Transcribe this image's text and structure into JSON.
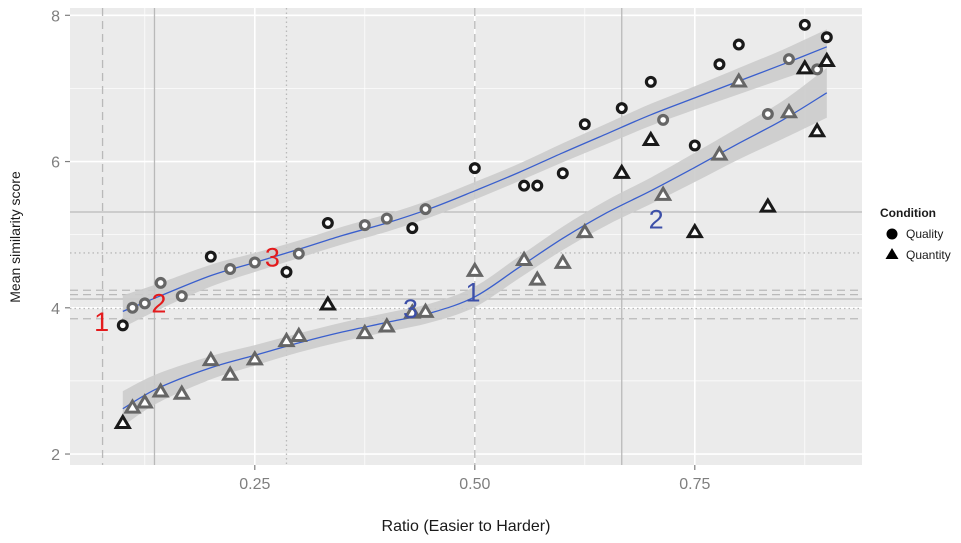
{
  "chart_data": {
    "type": "scatter",
    "xlabel": "Ratio (Easier to Harder)",
    "ylabel": "Mean similarity score",
    "xlim": [
      0.04,
      0.94
    ],
    "ylim": [
      1.85,
      8.1
    ],
    "x_ticks": [
      {
        "value": 0.25,
        "label": "0.25"
      },
      {
        "value": 0.5,
        "label": "0.50"
      },
      {
        "value": 0.75,
        "label": "0.75"
      }
    ],
    "y_ticks": [
      {
        "value": 2,
        "label": "2"
      },
      {
        "value": 4,
        "label": "4"
      },
      {
        "value": 6,
        "label": "6"
      },
      {
        "value": 8,
        "label": "8"
      }
    ],
    "grid": true,
    "legend": {
      "title": "Condition",
      "placement": "right",
      "entries": [
        {
          "label": "Quality",
          "shape": "circle"
        },
        {
          "label": "Quantity",
          "shape": "triangle"
        }
      ]
    },
    "series": [
      {
        "name": "Quality",
        "marker": "circle",
        "points": [
          {
            "x": 0.1,
            "y": 3.76,
            "ring": "dark"
          },
          {
            "x": 0.111,
            "y": 4.0,
            "ring": "grey"
          },
          {
            "x": 0.125,
            "y": 4.06,
            "ring": "grey"
          },
          {
            "x": 0.143,
            "y": 4.34,
            "ring": "grey"
          },
          {
            "x": 0.167,
            "y": 4.16,
            "ring": "grey"
          },
          {
            "x": 0.2,
            "y": 4.7,
            "ring": "dark"
          },
          {
            "x": 0.222,
            "y": 4.53,
            "ring": "grey"
          },
          {
            "x": 0.25,
            "y": 4.62,
            "ring": "grey"
          },
          {
            "x": 0.286,
            "y": 4.49,
            "ring": "dark"
          },
          {
            "x": 0.3,
            "y": 4.74,
            "ring": "grey"
          },
          {
            "x": 0.333,
            "y": 5.16,
            "ring": "dark"
          },
          {
            "x": 0.375,
            "y": 5.13,
            "ring": "grey"
          },
          {
            "x": 0.4,
            "y": 5.22,
            "ring": "grey"
          },
          {
            "x": 0.429,
            "y": 5.09,
            "ring": "dark"
          },
          {
            "x": 0.444,
            "y": 5.35,
            "ring": "grey"
          },
          {
            "x": 0.5,
            "y": 5.91,
            "ring": "dark"
          },
          {
            "x": 0.556,
            "y": 5.67,
            "ring": "dark"
          },
          {
            "x": 0.571,
            "y": 5.67,
            "ring": "dark"
          },
          {
            "x": 0.6,
            "y": 5.84,
            "ring": "dark"
          },
          {
            "x": 0.625,
            "y": 6.51,
            "ring": "dark"
          },
          {
            "x": 0.667,
            "y": 6.73,
            "ring": "dark"
          },
          {
            "x": 0.7,
            "y": 7.09,
            "ring": "dark"
          },
          {
            "x": 0.714,
            "y": 6.57,
            "ring": "grey"
          },
          {
            "x": 0.75,
            "y": 6.22,
            "ring": "dark"
          },
          {
            "x": 0.778,
            "y": 7.33,
            "ring": "dark"
          },
          {
            "x": 0.8,
            "y": 7.6,
            "ring": "dark"
          },
          {
            "x": 0.833,
            "y": 6.65,
            "ring": "grey"
          },
          {
            "x": 0.857,
            "y": 7.4,
            "ring": "grey"
          },
          {
            "x": 0.875,
            "y": 7.87,
            "ring": "dark"
          },
          {
            "x": 0.889,
            "y": 7.26,
            "ring": "grey"
          },
          {
            "x": 0.9,
            "y": 7.7,
            "ring": "dark"
          }
        ]
      },
      {
        "name": "Quantity",
        "marker": "triangle",
        "points": [
          {
            "x": 0.1,
            "y": 2.42,
            "ring": "dark"
          },
          {
            "x": 0.111,
            "y": 2.63,
            "ring": "grey"
          },
          {
            "x": 0.125,
            "y": 2.7,
            "ring": "grey"
          },
          {
            "x": 0.143,
            "y": 2.85,
            "ring": "grey"
          },
          {
            "x": 0.167,
            "y": 2.82,
            "ring": "grey"
          },
          {
            "x": 0.2,
            "y": 3.28,
            "ring": "grey"
          },
          {
            "x": 0.222,
            "y": 3.08,
            "ring": "grey"
          },
          {
            "x": 0.25,
            "y": 3.29,
            "ring": "grey"
          },
          {
            "x": 0.286,
            "y": 3.54,
            "ring": "grey"
          },
          {
            "x": 0.3,
            "y": 3.61,
            "ring": "grey"
          },
          {
            "x": 0.333,
            "y": 4.04,
            "ring": "dark"
          },
          {
            "x": 0.375,
            "y": 3.65,
            "ring": "grey"
          },
          {
            "x": 0.4,
            "y": 3.74,
            "ring": "grey"
          },
          {
            "x": 0.429,
            "y": 3.93,
            "ring": "grey"
          },
          {
            "x": 0.444,
            "y": 3.94,
            "ring": "grey"
          },
          {
            "x": 0.5,
            "y": 4.5,
            "ring": "grey"
          },
          {
            "x": 0.556,
            "y": 4.65,
            "ring": "grey"
          },
          {
            "x": 0.571,
            "y": 4.38,
            "ring": "grey"
          },
          {
            "x": 0.6,
            "y": 4.61,
            "ring": "grey"
          },
          {
            "x": 0.625,
            "y": 5.03,
            "ring": "grey"
          },
          {
            "x": 0.667,
            "y": 5.84,
            "ring": "dark"
          },
          {
            "x": 0.7,
            "y": 6.29,
            "ring": "dark"
          },
          {
            "x": 0.714,
            "y": 5.54,
            "ring": "grey"
          },
          {
            "x": 0.75,
            "y": 5.03,
            "ring": "dark"
          },
          {
            "x": 0.778,
            "y": 6.09,
            "ring": "grey"
          },
          {
            "x": 0.8,
            "y": 7.09,
            "ring": "grey"
          },
          {
            "x": 0.833,
            "y": 5.38,
            "ring": "dark"
          },
          {
            "x": 0.857,
            "y": 6.67,
            "ring": "grey"
          },
          {
            "x": 0.875,
            "y": 7.27,
            "ring": "dark"
          },
          {
            "x": 0.889,
            "y": 6.41,
            "ring": "dark"
          },
          {
            "x": 0.9,
            "y": 7.37,
            "ring": "dark"
          }
        ]
      }
    ],
    "smooth_lines": [
      {
        "series": "Quality",
        "x": [
          0.1,
          0.14,
          0.2,
          0.25,
          0.3,
          0.35,
          0.4,
          0.45,
          0.5,
          0.55,
          0.6,
          0.65,
          0.7,
          0.75,
          0.8,
          0.85,
          0.9
        ],
        "y": [
          3.95,
          4.15,
          4.44,
          4.62,
          4.8,
          4.99,
          5.16,
          5.36,
          5.6,
          5.85,
          6.12,
          6.38,
          6.64,
          6.87,
          7.1,
          7.33,
          7.57
        ],
        "band": [
          0.22,
          0.18,
          0.15,
          0.13,
          0.12,
          0.12,
          0.12,
          0.12,
          0.12,
          0.12,
          0.13,
          0.14,
          0.15,
          0.16,
          0.18,
          0.2,
          0.24
        ]
      },
      {
        "series": "Quantity",
        "x": [
          0.1,
          0.14,
          0.2,
          0.25,
          0.3,
          0.35,
          0.4,
          0.45,
          0.5,
          0.55,
          0.6,
          0.65,
          0.7,
          0.75,
          0.8,
          0.85,
          0.9
        ],
        "y": [
          2.62,
          2.9,
          3.18,
          3.35,
          3.52,
          3.67,
          3.8,
          3.93,
          4.15,
          4.55,
          4.95,
          5.3,
          5.6,
          5.92,
          6.25,
          6.57,
          6.94
        ],
        "band": [
          0.24,
          0.2,
          0.16,
          0.14,
          0.13,
          0.13,
          0.13,
          0.13,
          0.14,
          0.15,
          0.16,
          0.17,
          0.18,
          0.2,
          0.22,
          0.26,
          0.34
        ]
      }
    ],
    "reference_lines": [
      {
        "axis": "x",
        "value": 0.077,
        "style": "dashed"
      },
      {
        "axis": "x",
        "value": 0.136,
        "style": "solid"
      },
      {
        "axis": "x",
        "value": 0.286,
        "style": "dotted"
      },
      {
        "axis": "x",
        "value": 0.5,
        "style": "dashed"
      },
      {
        "axis": "x",
        "value": 0.667,
        "style": "solid"
      },
      {
        "axis": "y",
        "value": 5.31,
        "style": "solid"
      },
      {
        "axis": "y",
        "value": 4.75,
        "style": "dotted"
      },
      {
        "axis": "y",
        "value": 4.24,
        "style": "dashed"
      },
      {
        "axis": "y",
        "value": 4.18,
        "style": "dashed"
      },
      {
        "axis": "y",
        "value": 4.12,
        "style": "solid"
      },
      {
        "axis": "y",
        "value": 3.99,
        "style": "dotted"
      },
      {
        "axis": "y",
        "value": 3.85,
        "style": "dashed"
      }
    ],
    "annotations": [
      {
        "text": "1",
        "x": 0.076,
        "y": 3.82,
        "color": "#e41a1c"
      },
      {
        "text": "2",
        "x": 0.141,
        "y": 4.07,
        "color": "#e41a1c"
      },
      {
        "text": "3",
        "x": 0.27,
        "y": 4.7,
        "color": "#e41a1c"
      },
      {
        "text": "3",
        "x": 0.427,
        "y": 4.0,
        "color": "#3c4fa8"
      },
      {
        "text": "1",
        "x": 0.498,
        "y": 4.22,
        "color": "#3c4fa8"
      },
      {
        "text": "2",
        "x": 0.706,
        "y": 5.22,
        "color": "#3c4fa8"
      }
    ],
    "colors": {
      "panel": "#ebebeb",
      "grid": "#ffffff",
      "smooth_line": "#3a5fcd",
      "ribbon": "#cccccc",
      "marker_dark": "#1a1a1a",
      "marker_grey": "#666666"
    }
  }
}
